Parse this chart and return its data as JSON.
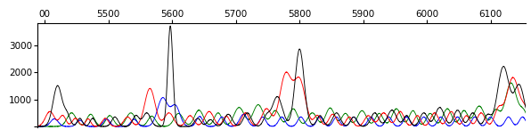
{
  "xlim": [
    5388,
    6155
  ],
  "ylim": [
    -30,
    3800
  ],
  "xticks": [
    5400,
    5500,
    5600,
    5700,
    5800,
    5900,
    6000,
    6100
  ],
  "xtick_labels": [
    "00",
    "5500",
    "5600",
    "5700",
    "5800",
    "5900",
    "6000",
    "6100"
  ],
  "yticks": [
    0,
    1000,
    2000,
    3000
  ],
  "ytick_labels": [
    "",
    "1000",
    "2000",
    "3000"
  ],
  "background_color": "#ffffff",
  "colors": {
    "black": "#000000",
    "red": "#ff0000",
    "green": "#008000",
    "blue": "#0000ff"
  },
  "figsize": [
    5.96,
    1.46
  ],
  "dpi": 100
}
